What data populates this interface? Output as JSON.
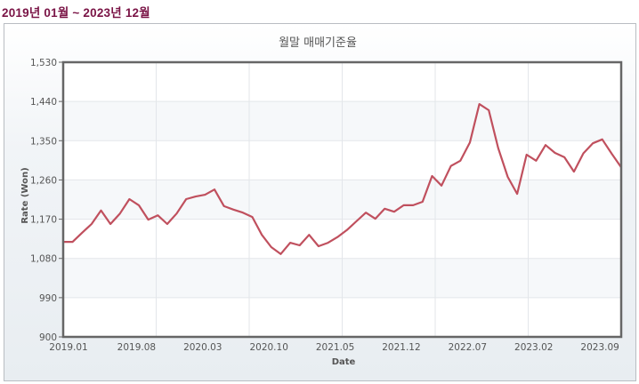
{
  "header": {
    "period_label": "2019년 01월 ~ 2023년 12월"
  },
  "colors": {
    "period_text": "#7a1446",
    "line": "#c0505e",
    "frame": "#666666",
    "grid": "#e3e6ea",
    "band": "#f6f8fa"
  },
  "chart_data": {
    "type": "line",
    "title": "월말 매매기준율",
    "xlabel": "Date",
    "ylabel": "Rate (Won)",
    "ylim": [
      900,
      1530
    ],
    "yticks": [
      900,
      990,
      1080,
      1170,
      1260,
      1350,
      1440,
      1530
    ],
    "ytick_labels": [
      "900",
      "990",
      "1,080",
      "1,170",
      "1,260",
      "1,350",
      "1,440",
      "1,530"
    ],
    "xtick_labels": [
      "2019.01",
      "2019.08",
      "2020.03",
      "2020.10",
      "2021.05",
      "2021.12",
      "2022.07",
      "2023.02",
      "2023.09"
    ],
    "grid": true,
    "legend": "none",
    "x": [
      "2019.01",
      "2019.02",
      "2019.03",
      "2019.04",
      "2019.05",
      "2019.06",
      "2019.07",
      "2019.08",
      "2019.09",
      "2019.10",
      "2019.11",
      "2019.12",
      "2020.01",
      "2020.02",
      "2020.03",
      "2020.04",
      "2020.05",
      "2020.06",
      "2020.07",
      "2020.08",
      "2020.09",
      "2020.10",
      "2020.11",
      "2020.12",
      "2021.01",
      "2021.02",
      "2021.03",
      "2021.04",
      "2021.05",
      "2021.06",
      "2021.07",
      "2021.08",
      "2021.09",
      "2021.10",
      "2021.11",
      "2021.12",
      "2022.01",
      "2022.02",
      "2022.03",
      "2022.04",
      "2022.05",
      "2022.06",
      "2022.07",
      "2022.08",
      "2022.09",
      "2022.10",
      "2022.11",
      "2022.12",
      "2023.01",
      "2023.02",
      "2023.03",
      "2023.04",
      "2023.05",
      "2023.06",
      "2023.07",
      "2023.08",
      "2023.09",
      "2023.10",
      "2023.11",
      "2023.12"
    ],
    "series": [
      {
        "name": "월말 매매기준율",
        "values": [
          1118,
          1118,
          1139,
          1159,
          1190,
          1159,
          1183,
          1216,
          1202,
          1169,
          1179,
          1159,
          1183,
          1216,
          1222,
          1226,
          1238,
          1200,
          1192,
          1185,
          1175,
          1134,
          1106,
          1090,
          1116,
          1110,
          1134,
          1108,
          1116,
          1129,
          1145,
          1165,
          1185,
          1171,
          1194,
          1187,
          1202,
          1202,
          1210,
          1269,
          1247,
          1292,
          1304,
          1346,
          1434,
          1420,
          1333,
          1267,
          1228,
          1318,
          1304,
          1340,
          1322,
          1312,
          1279,
          1321,
          1344,
          1353,
          1320,
          1289
        ]
      }
    ]
  }
}
